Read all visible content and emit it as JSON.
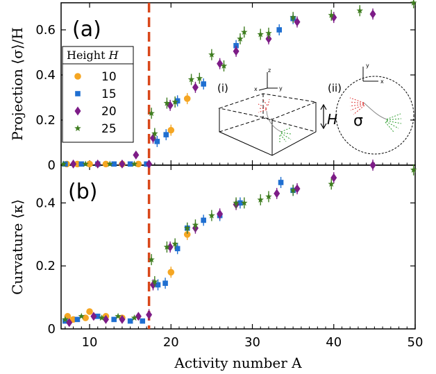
{
  "chart_data": [
    {
      "type": "scatter",
      "panel_label": "(a)",
      "xlabel": "",
      "ylabel": "Projection ⟨σ⟩/H",
      "xlim": [
        6.5,
        50
      ],
      "ylim": [
        0,
        0.72
      ],
      "xticks": [
        10,
        20,
        30,
        40,
        50
      ],
      "yticks": [
        0,
        0.2,
        0.4,
        0.6
      ],
      "ytick_labels": [
        "0",
        "0.2",
        "0.4",
        "0.6"
      ],
      "legend": {
        "title_prefix": "Height ",
        "title_var": "H",
        "placement": "left",
        "entries": [
          "10",
          "15",
          "20",
          "25"
        ]
      },
      "vline": {
        "x": 17.3,
        "color": "#d9471a",
        "style": "dashed"
      },
      "series": [
        {
          "name": "10",
          "marker": "circle",
          "color": "#f5a623",
          "points": [
            [
              7.2,
              0.005
            ],
            [
              8.5,
              0.005
            ],
            [
              10,
              0.005
            ],
            [
              12,
              0.005
            ],
            [
              14,
              0.005
            ],
            [
              16,
              0.005
            ],
            [
              20,
              0.155
            ],
            [
              22,
              0.295
            ]
          ]
        },
        {
          "name": "15",
          "marker": "square",
          "color": "#1f6fd1",
          "points": [
            [
              7,
              0.005
            ],
            [
              9,
              0.005
            ],
            [
              11,
              0.005
            ],
            [
              13,
              0.005
            ],
            [
              15,
              0.005
            ],
            [
              17,
              0.005
            ],
            [
              18.3,
              0.105
            ],
            [
              19.4,
              0.135
            ],
            [
              20.8,
              0.285
            ],
            [
              24,
              0.36
            ],
            [
              28,
              0.53
            ],
            [
              33.3,
              0.6
            ],
            [
              35,
              0.65
            ]
          ]
        },
        {
          "name": "20",
          "marker": "diamond",
          "color": "#7d1c87",
          "points": [
            [
              8,
              0.005
            ],
            [
              11,
              0.005
            ],
            [
              14,
              0.005
            ],
            [
              15.7,
              0.045
            ],
            [
              17.3,
              0.005
            ],
            [
              17.8,
              0.12
            ],
            [
              19.9,
              0.265
            ],
            [
              23,
              0.345
            ],
            [
              26,
              0.45
            ],
            [
              28,
              0.505
            ],
            [
              32,
              0.56
            ],
            [
              35.5,
              0.635
            ],
            [
              40,
              0.655
            ],
            [
              44.8,
              0.67
            ]
          ]
        },
        {
          "name": "25",
          "marker": "star",
          "color": "#3f7d20",
          "points": [
            [
              6.8,
              0.005
            ],
            [
              9.5,
              0.005
            ],
            [
              12.5,
              0.005
            ],
            [
              15.5,
              0.005
            ],
            [
              17.6,
              0.23
            ],
            [
              18,
              0.14
            ],
            [
              19.5,
              0.275
            ],
            [
              20.5,
              0.28
            ],
            [
              22.5,
              0.38
            ],
            [
              23.5,
              0.385
            ],
            [
              25,
              0.49
            ],
            [
              26.5,
              0.44
            ],
            [
              28.5,
              0.56
            ],
            [
              29,
              0.59
            ],
            [
              31,
              0.58
            ],
            [
              32,
              0.585
            ],
            [
              35,
              0.655
            ],
            [
              39.7,
              0.665
            ],
            [
              43.2,
              0.685
            ],
            [
              49.8,
              0.72
            ]
          ]
        }
      ],
      "inset": {
        "labels": [
          "(i)",
          "(ii)",
          "H",
          "σ"
        ],
        "axes_i": [
          "x",
          "y",
          "z"
        ],
        "axes_ii": [
          "x",
          "y"
        ]
      }
    },
    {
      "type": "scatter",
      "panel_label": "(b)",
      "xlabel": "Activity number A",
      "ylabel": "Curvature ⟨κ⟩",
      "xlim": [
        6.5,
        50
      ],
      "ylim": [
        0,
        0.52
      ],
      "xticks": [
        10,
        20,
        30,
        40,
        50
      ],
      "yticks": [
        0,
        0.2,
        0.4
      ],
      "ytick_labels": [
        "0",
        "0.2",
        "0.4"
      ],
      "vline": {
        "x": 17.3,
        "color": "#d9471a",
        "style": "dashed"
      },
      "series": [
        {
          "name": "10",
          "marker": "circle",
          "color": "#f5a623",
          "points": [
            [
              7.3,
              0.04
            ],
            [
              8,
              0.03
            ],
            [
              9.5,
              0.035
            ],
            [
              10,
              0.055
            ],
            [
              12,
              0.04
            ],
            [
              14,
              0.035
            ],
            [
              20,
              0.18
            ],
            [
              22,
              0.3
            ]
          ]
        },
        {
          "name": "15",
          "marker": "square",
          "color": "#1f6fd1",
          "points": [
            [
              7,
              0.025
            ],
            [
              8.5,
              0.03
            ],
            [
              11,
              0.04
            ],
            [
              13,
              0.03
            ],
            [
              15,
              0.025
            ],
            [
              16.5,
              0.025
            ],
            [
              18.4,
              0.14
            ],
            [
              19.3,
              0.145
            ],
            [
              20.8,
              0.255
            ],
            [
              22,
              0.32
            ],
            [
              24,
              0.345
            ],
            [
              26,
              0.36
            ],
            [
              28.5,
              0.4
            ],
            [
              33.5,
              0.465
            ],
            [
              35,
              0.44
            ]
          ]
        },
        {
          "name": "20",
          "marker": "diamond",
          "color": "#7d1c87",
          "points": [
            [
              7.5,
              0.02
            ],
            [
              10.5,
              0.04
            ],
            [
              12,
              0.03
            ],
            [
              14,
              0.03
            ],
            [
              16,
              0.04
            ],
            [
              17.3,
              0.045
            ],
            [
              17.8,
              0.14
            ],
            [
              19.9,
              0.26
            ],
            [
              23,
              0.32
            ],
            [
              26,
              0.365
            ],
            [
              28,
              0.395
            ],
            [
              33,
              0.43
            ],
            [
              35.5,
              0.445
            ],
            [
              40,
              0.48
            ],
            [
              44.8,
              0.52
            ]
          ]
        },
        {
          "name": "25",
          "marker": "star",
          "color": "#3f7d20",
          "points": [
            [
              7,
              0.03
            ],
            [
              9,
              0.04
            ],
            [
              11.5,
              0.035
            ],
            [
              13.5,
              0.04
            ],
            [
              15.5,
              0.035
            ],
            [
              17.6,
              0.22
            ],
            [
              18,
              0.15
            ],
            [
              19.5,
              0.26
            ],
            [
              20.5,
              0.27
            ],
            [
              22,
              0.32
            ],
            [
              23,
              0.33
            ],
            [
              25,
              0.36
            ],
            [
              28,
              0.4
            ],
            [
              29,
              0.4
            ],
            [
              31,
              0.41
            ],
            [
              32,
              0.42
            ],
            [
              35,
              0.44
            ],
            [
              39.7,
              0.46
            ],
            [
              49.8,
              0.505
            ]
          ]
        }
      ]
    }
  ]
}
